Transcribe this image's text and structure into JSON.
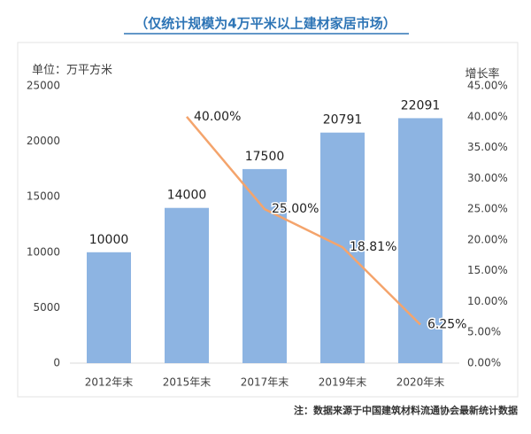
{
  "chart_data": {
    "type": "bar_line",
    "title": "（仅统计规模为4万平米以上建材家居市场）",
    "y_label": "单位：万平方米",
    "y2_label": "增长率",
    "footnote": "注：数据来源于中国建筑材料流通协会最新统计数据",
    "categories": [
      "2012年末",
      "2015年末",
      "2017年末",
      "2019年末",
      "2020年末"
    ],
    "series": [
      {
        "type": "bar",
        "color": "#8db4e2",
        "values": [
          10000,
          14000,
          17500,
          20791,
          22091
        ]
      },
      {
        "type": "line",
        "axis": "y2",
        "color": "#f4a46c",
        "values": [
          null,
          40,
          25,
          18.81,
          6.25
        ],
        "value_labels": [
          null,
          "40.00%",
          "25.00%",
          "18.81%",
          "6.25%"
        ]
      }
    ],
    "ylim": [
      0,
      25000
    ],
    "yticks": [
      0,
      5000,
      10000,
      15000,
      20000,
      25000
    ],
    "y2lim": [
      0,
      45
    ],
    "y2ticks": [
      {
        "value": 0,
        "label": "0.00%"
      },
      {
        "value": 5,
        "label": "5.00%"
      },
      {
        "value": 10,
        "label": "10.00%"
      },
      {
        "value": 15,
        "label": "15.00%"
      },
      {
        "value": 20,
        "label": "20.00%"
      },
      {
        "value": 25,
        "label": "25.00%"
      },
      {
        "value": 30,
        "label": "30.00%"
      },
      {
        "value": 35,
        "label": "35.00%"
      },
      {
        "value": 40,
        "label": "40.00%"
      },
      {
        "value": 45,
        "label": "45.00%"
      }
    ]
  }
}
